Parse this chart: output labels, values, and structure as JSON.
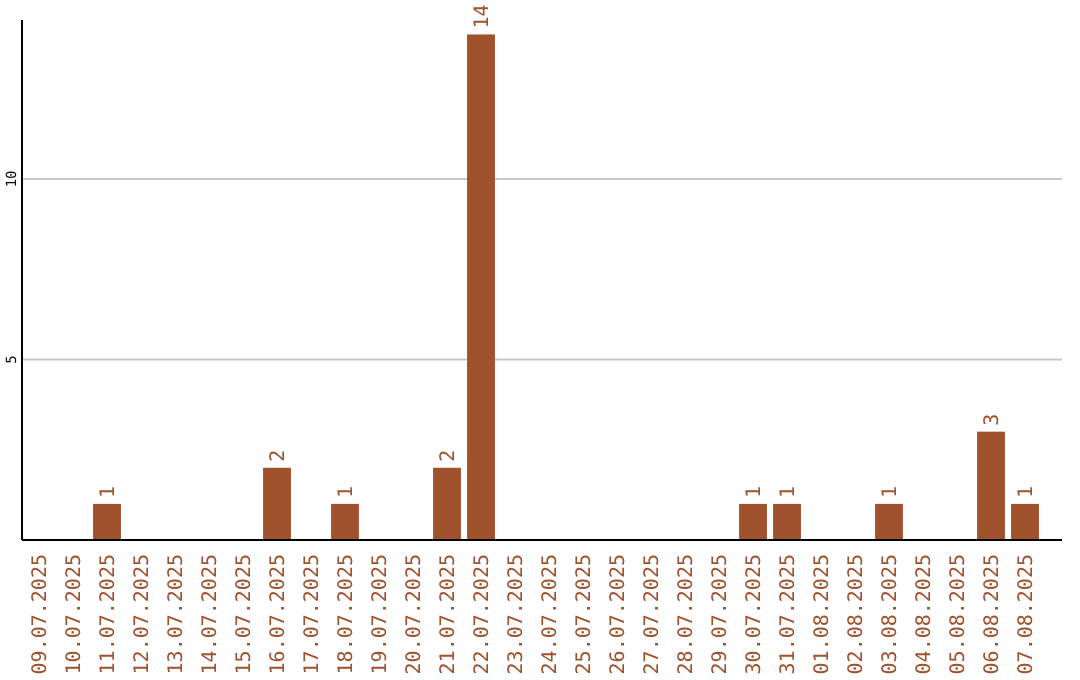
{
  "chart_data": {
    "type": "bar",
    "categories": [
      "09.07.2025",
      "10.07.2025",
      "11.07.2025",
      "12.07.2025",
      "13.07.2025",
      "14.07.2025",
      "15.07.2025",
      "16.07.2025",
      "17.07.2025",
      "18.07.2025",
      "19.07.2025",
      "20.07.2025",
      "21.07.2025",
      "22.07.2025",
      "23.07.2025",
      "24.07.2025",
      "25.07.2025",
      "26.07.2025",
      "27.07.2025",
      "28.07.2025",
      "29.07.2025",
      "30.07.2025",
      "31.07.2025",
      "01.08.2025",
      "02.08.2025",
      "03.08.2025",
      "04.08.2025",
      "05.08.2025",
      "06.08.2025",
      "07.08.2025"
    ],
    "values": [
      0,
      0,
      1,
      0,
      0,
      0,
      0,
      2,
      0,
      1,
      0,
      0,
      2,
      14,
      0,
      0,
      0,
      0,
      0,
      0,
      0,
      1,
      1,
      0,
      0,
      1,
      0,
      0,
      3,
      1
    ],
    "value_labels": [
      null,
      null,
      "1",
      null,
      null,
      null,
      null,
      "2",
      null,
      "1",
      null,
      null,
      "2",
      "14",
      null,
      null,
      null,
      null,
      null,
      null,
      null,
      "1",
      "1",
      null,
      null,
      "1",
      null,
      null,
      "3",
      "1"
    ],
    "color": "#a0522d",
    "ylim": [
      0,
      14.4
    ],
    "yticks": [
      5,
      10
    ],
    "grid": "y"
  }
}
